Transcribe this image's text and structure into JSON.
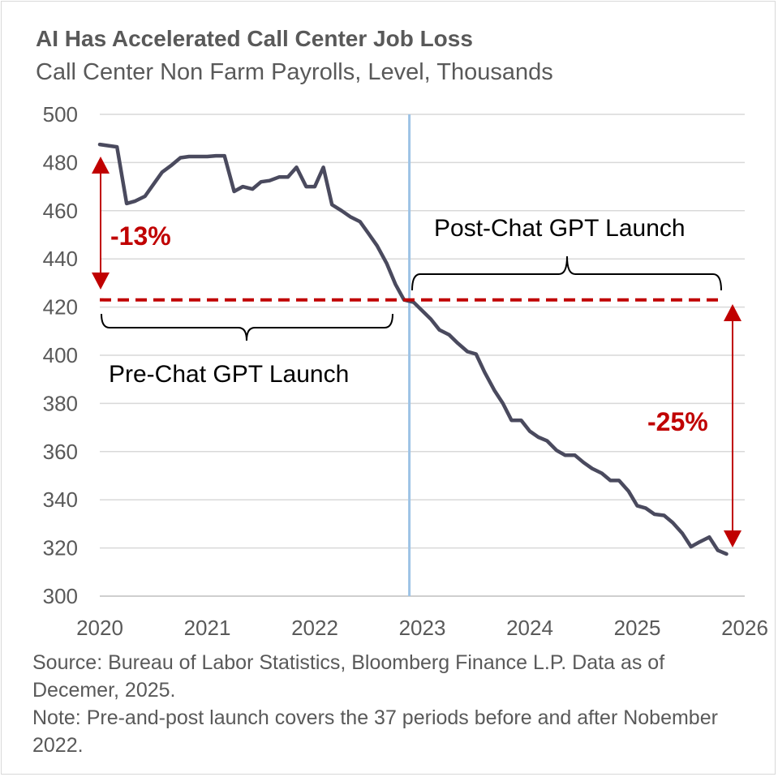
{
  "chart_data": {
    "type": "line",
    "title": "AI Has Accelerated Call Center Job Loss",
    "subtitle": "Call Center Non Farm Payrolls, Level, Thousands",
    "xlabel": "",
    "ylabel": "",
    "xlim": [
      2020,
      2026
    ],
    "ylim": [
      300,
      500
    ],
    "x_ticks": [
      "2020",
      "2021",
      "2022",
      "2023",
      "2024",
      "2025",
      "2026"
    ],
    "y_ticks": [
      "300",
      "320",
      "340",
      "360",
      "380",
      "400",
      "420",
      "440",
      "460",
      "480",
      "500"
    ],
    "grid": "horizontal",
    "colors": {
      "series": "#4a4a5e",
      "reference_line": "#c00000",
      "launch_line": "#9dc3e6",
      "grid": "#d9d9d9"
    },
    "series": [
      {
        "points": [
          [
            2020.0,
            487.5
          ],
          [
            2020.08,
            487.0
          ],
          [
            2020.16,
            486.5
          ],
          [
            2020.25,
            463.0
          ],
          [
            2020.33,
            464.0
          ],
          [
            2020.42,
            466.0
          ],
          [
            2020.5,
            471.0
          ],
          [
            2020.58,
            476.0
          ],
          [
            2020.67,
            479.0
          ],
          [
            2020.75,
            482.0
          ],
          [
            2020.83,
            482.5
          ],
          [
            2020.92,
            482.5
          ],
          [
            2021.0,
            482.5
          ],
          [
            2021.08,
            482.8
          ],
          [
            2021.16,
            482.8
          ],
          [
            2021.25,
            468.0
          ],
          [
            2021.33,
            470.0
          ],
          [
            2021.42,
            469.0
          ],
          [
            2021.5,
            472.0
          ],
          [
            2021.58,
            472.5
          ],
          [
            2021.67,
            474.0
          ],
          [
            2021.75,
            474.0
          ],
          [
            2021.83,
            478.0
          ],
          [
            2021.92,
            470.0
          ],
          [
            2022.0,
            470.0
          ],
          [
            2022.08,
            478.0
          ],
          [
            2022.16,
            462.5
          ],
          [
            2022.25,
            460.0
          ],
          [
            2022.33,
            457.5
          ],
          [
            2022.42,
            455.5
          ],
          [
            2022.5,
            450.5
          ],
          [
            2022.58,
            445.5
          ],
          [
            2022.67,
            438.0
          ],
          [
            2022.75,
            429.5
          ],
          [
            2022.83,
            423.0
          ],
          [
            2022.92,
            422.0
          ],
          [
            2023.0,
            418.5
          ],
          [
            2023.08,
            415.0
          ],
          [
            2023.16,
            410.5
          ],
          [
            2023.25,
            408.5
          ],
          [
            2023.33,
            405.0
          ],
          [
            2023.42,
            401.5
          ],
          [
            2023.5,
            400.5
          ],
          [
            2023.58,
            393.0
          ],
          [
            2023.67,
            385.5
          ],
          [
            2023.75,
            380.0
          ],
          [
            2023.83,
            373.0
          ],
          [
            2023.92,
            373.0
          ],
          [
            2024.0,
            368.5
          ],
          [
            2024.08,
            366.0
          ],
          [
            2024.16,
            364.5
          ],
          [
            2024.25,
            360.5
          ],
          [
            2024.33,
            358.5
          ],
          [
            2024.42,
            358.5
          ],
          [
            2024.5,
            355.5
          ],
          [
            2024.58,
            353.0
          ],
          [
            2024.67,
            351.0
          ],
          [
            2024.75,
            348.0
          ],
          [
            2024.83,
            348.0
          ],
          [
            2024.92,
            343.5
          ],
          [
            2025.0,
            337.5
          ],
          [
            2025.08,
            336.5
          ],
          [
            2025.16,
            334.0
          ],
          [
            2025.25,
            333.5
          ],
          [
            2025.33,
            330.5
          ],
          [
            2025.42,
            326.0
          ],
          [
            2025.5,
            320.5
          ],
          [
            2025.58,
            322.5
          ],
          [
            2025.67,
            324.5
          ],
          [
            2025.75,
            319.0
          ],
          [
            2025.83,
            317.5
          ]
        ]
      }
    ],
    "reference_line": {
      "y": 423
    },
    "launch_line": {
      "x": 2022.88
    },
    "annotations": {
      "pre_label": "Pre-Chat GPT Launch",
      "post_label": "Post-Chat GPT Launch",
      "pre_change": "-13%",
      "post_change": "-25%"
    }
  },
  "source": "Source: Bureau of Labor Statistics, Bloomberg Finance L.P. Data as of Decemer, 2025.",
  "note": "Note: Pre-and-post launch covers the 37 periods before and after Nobember 2022."
}
